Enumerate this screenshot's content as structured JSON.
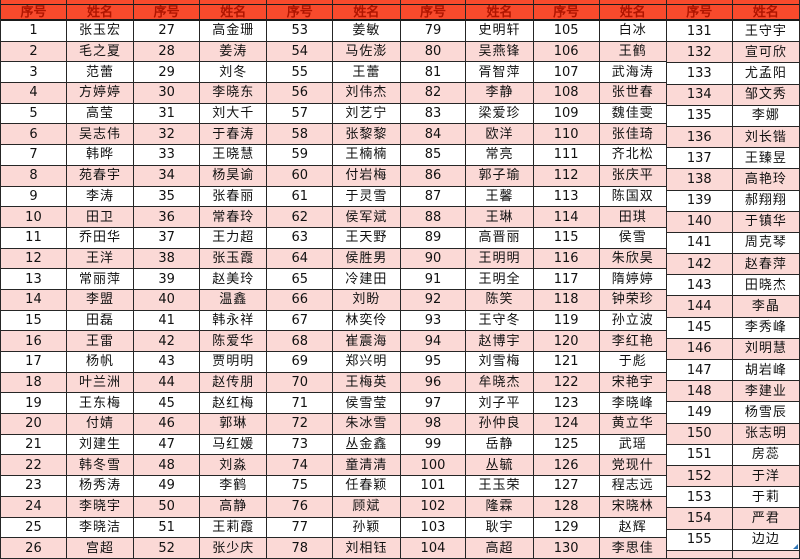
{
  "table_title": "name-roster-table",
  "colors": {
    "header_bg": "#F84A2C",
    "header_text": "#B01500",
    "alt_row_bg": "#FBD9D6",
    "row_bg": "#FFFFFF",
    "grid_border": "#262626",
    "cell_corner_marker": "#2E75B6"
  },
  "header_labels": {
    "no": "序号",
    "name": "姓名"
  },
  "groups": [
    {
      "rows": [
        {
          "no": "1",
          "name": "张玉宏"
        },
        {
          "no": "2",
          "name": "毛之夏"
        },
        {
          "no": "3",
          "name": "范蕾"
        },
        {
          "no": "4",
          "name": "方婷婷"
        },
        {
          "no": "5",
          "name": "高莹"
        },
        {
          "no": "6",
          "name": "吴志伟"
        },
        {
          "no": "7",
          "name": "韩晔"
        },
        {
          "no": "8",
          "name": "苑春宇"
        },
        {
          "no": "9",
          "name": "李涛"
        },
        {
          "no": "10",
          "name": "田卫"
        },
        {
          "no": "11",
          "name": "乔田华"
        },
        {
          "no": "12",
          "name": "王洋"
        },
        {
          "no": "13",
          "name": "常丽萍"
        },
        {
          "no": "14",
          "name": "李盟"
        },
        {
          "no": "15",
          "name": "田磊"
        },
        {
          "no": "16",
          "name": "王雷"
        },
        {
          "no": "17",
          "name": "杨帆"
        },
        {
          "no": "18",
          "name": "叶兰洲"
        },
        {
          "no": "19",
          "name": "王东梅"
        },
        {
          "no": "20",
          "name": "付婧"
        },
        {
          "no": "21",
          "name": "刘建生"
        },
        {
          "no": "22",
          "name": "韩冬雪"
        },
        {
          "no": "23",
          "name": "杨秀涛"
        },
        {
          "no": "24",
          "name": "李晓宇"
        },
        {
          "no": "25",
          "name": "李晓洁"
        },
        {
          "no": "26",
          "name": "宫超"
        }
      ]
    },
    {
      "rows": [
        {
          "no": "27",
          "name": "高金珊"
        },
        {
          "no": "28",
          "name": "姜涛"
        },
        {
          "no": "29",
          "name": "刘冬"
        },
        {
          "no": "30",
          "name": "李晓东"
        },
        {
          "no": "31",
          "name": "刘大千"
        },
        {
          "no": "32",
          "name": "于春涛"
        },
        {
          "no": "33",
          "name": "王晓慧"
        },
        {
          "no": "34",
          "name": "杨昊谕"
        },
        {
          "no": "35",
          "name": "张春丽"
        },
        {
          "no": "36",
          "name": "常春玲"
        },
        {
          "no": "37",
          "name": "王力超"
        },
        {
          "no": "38",
          "name": "张玉霞"
        },
        {
          "no": "39",
          "name": "赵美玲"
        },
        {
          "no": "40",
          "name": "温鑫"
        },
        {
          "no": "41",
          "name": "韩永祥"
        },
        {
          "no": "42",
          "name": "陈爱华"
        },
        {
          "no": "43",
          "name": "贾明明"
        },
        {
          "no": "44",
          "name": "赵传朋"
        },
        {
          "no": "45",
          "name": "赵红梅"
        },
        {
          "no": "46",
          "name": "郭琳"
        },
        {
          "no": "47",
          "name": "马红媛"
        },
        {
          "no": "48",
          "name": "刘淼"
        },
        {
          "no": "49",
          "name": "李鹤"
        },
        {
          "no": "50",
          "name": "高静"
        },
        {
          "no": "51",
          "name": "王莉霞"
        },
        {
          "no": "52",
          "name": "张少庆"
        }
      ]
    },
    {
      "rows": [
        {
          "no": "53",
          "name": "姜敏"
        },
        {
          "no": "54",
          "name": "马佐澎"
        },
        {
          "no": "55",
          "name": "王蕾"
        },
        {
          "no": "56",
          "name": "刘伟杰"
        },
        {
          "no": "57",
          "name": "刘艺宁"
        },
        {
          "no": "58",
          "name": "张黎黎"
        },
        {
          "no": "59",
          "name": "王楠楠"
        },
        {
          "no": "60",
          "name": "付岩梅"
        },
        {
          "no": "61",
          "name": "于灵雪"
        },
        {
          "no": "62",
          "name": "侯军斌"
        },
        {
          "no": "63",
          "name": "王天野"
        },
        {
          "no": "64",
          "name": "侯胜男"
        },
        {
          "no": "65",
          "name": "冷建田"
        },
        {
          "no": "66",
          "name": "刘盼"
        },
        {
          "no": "67",
          "name": "林奕伶"
        },
        {
          "no": "68",
          "name": "崔震海"
        },
        {
          "no": "69",
          "name": "郑兴明"
        },
        {
          "no": "70",
          "name": "王梅英"
        },
        {
          "no": "71",
          "name": "侯雪莹"
        },
        {
          "no": "72",
          "name": "朱冰雪"
        },
        {
          "no": "73",
          "name": "丛金鑫"
        },
        {
          "no": "74",
          "name": "童清清"
        },
        {
          "no": "75",
          "name": "任春颖"
        },
        {
          "no": "76",
          "name": "顾斌"
        },
        {
          "no": "77",
          "name": "孙颖"
        },
        {
          "no": "78",
          "name": "刘相钰"
        }
      ]
    },
    {
      "rows": [
        {
          "no": "79",
          "name": "史明轩"
        },
        {
          "no": "80",
          "name": "吴燕锋"
        },
        {
          "no": "81",
          "name": "胥智萍"
        },
        {
          "no": "82",
          "name": "李静"
        },
        {
          "no": "83",
          "name": "梁爱珍"
        },
        {
          "no": "84",
          "name": "欧洋"
        },
        {
          "no": "85",
          "name": "常亮"
        },
        {
          "no": "86",
          "name": "郭子瑜"
        },
        {
          "no": "87",
          "name": "王馨"
        },
        {
          "no": "88",
          "name": "王琳"
        },
        {
          "no": "89",
          "name": "高晋丽"
        },
        {
          "no": "90",
          "name": "王明明"
        },
        {
          "no": "91",
          "name": "王明全"
        },
        {
          "no": "92",
          "name": "陈笑"
        },
        {
          "no": "93",
          "name": "王守冬"
        },
        {
          "no": "94",
          "name": "赵博宇"
        },
        {
          "no": "95",
          "name": "刘雪梅"
        },
        {
          "no": "96",
          "name": "牟晓杰"
        },
        {
          "no": "97",
          "name": "刘子平"
        },
        {
          "no": "98",
          "name": "孙仲良"
        },
        {
          "no": "99",
          "name": "岳静"
        },
        {
          "no": "100",
          "name": "丛毓"
        },
        {
          "no": "101",
          "name": "王玉荣"
        },
        {
          "no": "102",
          "name": "隆霖"
        },
        {
          "no": "103",
          "name": "耿宇"
        },
        {
          "no": "104",
          "name": "高超"
        }
      ]
    },
    {
      "rows": [
        {
          "no": "105",
          "name": "白冰"
        },
        {
          "no": "106",
          "name": "王鹤"
        },
        {
          "no": "107",
          "name": "武海涛"
        },
        {
          "no": "108",
          "name": "张世春"
        },
        {
          "no": "109",
          "name": "魏佳雯"
        },
        {
          "no": "110",
          "name": "张佳琦"
        },
        {
          "no": "111",
          "name": "齐北松"
        },
        {
          "no": "112",
          "name": "张庆平"
        },
        {
          "no": "113",
          "name": "陈国双"
        },
        {
          "no": "114",
          "name": "田琪"
        },
        {
          "no": "115",
          "name": "侯雪"
        },
        {
          "no": "116",
          "name": "朱欣昊"
        },
        {
          "no": "117",
          "name": "隋婷婷"
        },
        {
          "no": "118",
          "name": "钟荣珍"
        },
        {
          "no": "119",
          "name": "孙立波"
        },
        {
          "no": "120",
          "name": "李红艳"
        },
        {
          "no": "121",
          "name": "于彪"
        },
        {
          "no": "122",
          "name": "宋艳宇"
        },
        {
          "no": "123",
          "name": "李晓峰"
        },
        {
          "no": "124",
          "name": "黄立华"
        },
        {
          "no": "125",
          "name": "武瑶"
        },
        {
          "no": "126",
          "name": "党现什"
        },
        {
          "no": "127",
          "name": "程志远"
        },
        {
          "no": "128",
          "name": "宋晓林"
        },
        {
          "no": "129",
          "name": "赵辉"
        },
        {
          "no": "130",
          "name": "李思佳"
        }
      ]
    },
    {
      "rows": [
        {
          "no": "131",
          "name": "王守宇"
        },
        {
          "no": "132",
          "name": "宣可欣"
        },
        {
          "no": "133",
          "name": "尤孟阳"
        },
        {
          "no": "134",
          "name": "邹文秀"
        },
        {
          "no": "135",
          "name": "李娜"
        },
        {
          "no": "136",
          "name": "刘长锴"
        },
        {
          "no": "137",
          "name": "王臻昱"
        },
        {
          "no": "138",
          "name": "高艳玲"
        },
        {
          "no": "139",
          "name": "郝翔翔"
        },
        {
          "no": "140",
          "name": "于镇华"
        },
        {
          "no": "141",
          "name": "周克琴"
        },
        {
          "no": "142",
          "name": "赵春萍"
        },
        {
          "no": "143",
          "name": "田晓杰"
        },
        {
          "no": "144",
          "name": "李晶"
        },
        {
          "no": "145",
          "name": "李秀峰"
        },
        {
          "no": "146",
          "name": "刘明慧"
        },
        {
          "no": "147",
          "name": "胡岩峰"
        },
        {
          "no": "148",
          "name": "李建业"
        },
        {
          "no": "149",
          "name": "杨雪辰"
        },
        {
          "no": "150",
          "name": "张志明"
        },
        {
          "no": "151",
          "name": "房蕊"
        },
        {
          "no": "152",
          "name": "于洋"
        },
        {
          "no": "153",
          "name": "于莉"
        },
        {
          "no": "154",
          "name": "严君"
        },
        {
          "no": "155",
          "name": "边边"
        },
        {
          "no": "",
          "name": ""
        }
      ]
    }
  ]
}
